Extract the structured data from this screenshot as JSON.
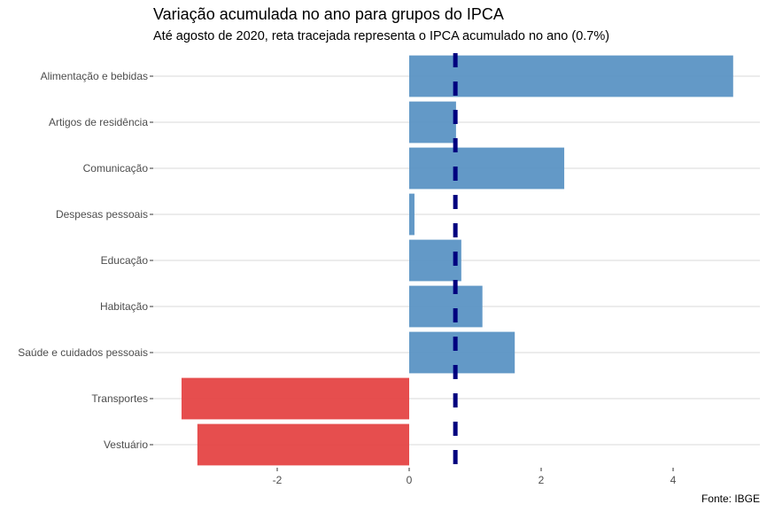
{
  "chart_data": {
    "type": "bar",
    "orientation": "horizontal",
    "title": "Variação acumulada no ano para grupos do IPCA",
    "subtitle": "Até agosto de 2020, reta tracejada representa o IPCA acumulado no ano (0.7%)",
    "caption": "Fonte: IBGE",
    "xlabel": "",
    "ylabel": "",
    "categories": [
      "Alimentação e bebidas",
      "Artigos de residência",
      "Comunicação",
      "Despesas pessoais",
      "Educação",
      "Habitação",
      "Saúde e cuidados pessoais",
      "Transportes",
      "Vestuário"
    ],
    "values": [
      4.91,
      0.71,
      2.35,
      0.08,
      0.79,
      1.11,
      1.6,
      -3.45,
      -3.21
    ],
    "xlim": [
      -3.45,
      5.3
    ],
    "xticks": [
      -2,
      0,
      2,
      4
    ],
    "xtick_labels": [
      "-2",
      "0",
      "2",
      "4"
    ],
    "reference_line": {
      "value": 0.7,
      "style": "dashed",
      "color": "#00007f"
    },
    "colors": {
      "positive": "#5b93c4",
      "negative": "#e54444"
    },
    "grid": "horizontal-major",
    "legend": "none"
  }
}
